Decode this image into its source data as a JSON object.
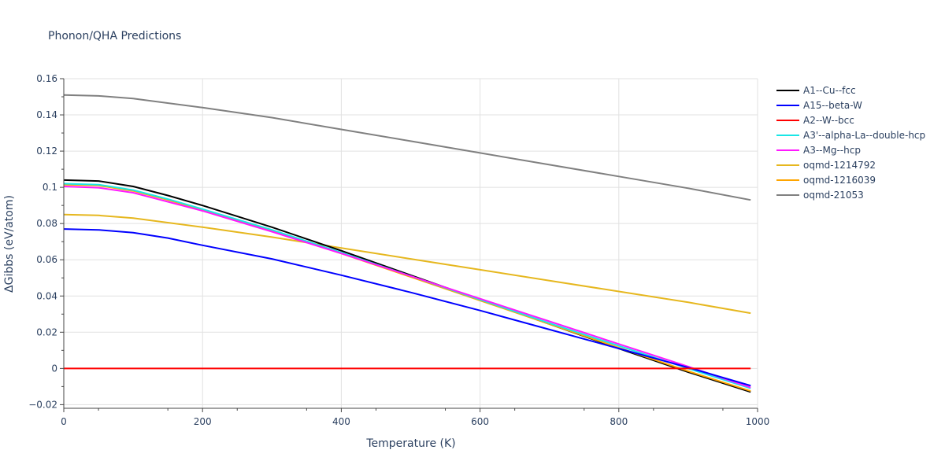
{
  "chart_data": {
    "type": "line",
    "title": "Phonon/QHA Predictions",
    "xlabel": "Temperature (K)",
    "ylabel": "ΔGibbs (eV/atom)",
    "xlim": [
      0,
      1000
    ],
    "ylim": [
      -0.022,
      0.16
    ],
    "xticks": [
      0,
      200,
      400,
      600,
      800,
      1000
    ],
    "xtick_labels": [
      "0",
      "200",
      "400",
      "600",
      "800",
      "1000"
    ],
    "yticks": [
      -0.02,
      0,
      0.02,
      0.04,
      0.06,
      0.08,
      0.1,
      0.12,
      0.14,
      0.16
    ],
    "ytick_labels": [
      "−0.02",
      "0",
      "0.02",
      "0.04",
      "0.06",
      "0.08",
      "0.1",
      "0.12",
      "0.14",
      "0.16"
    ],
    "grid": true,
    "legend_position": "right",
    "series": [
      {
        "name": "oqmd-21053",
        "color": "#808080",
        "x": [
          0,
          50,
          100,
          200,
          300,
          400,
          500,
          600,
          700,
          800,
          900,
          990
        ],
        "y": [
          0.151,
          0.1505,
          0.149,
          0.144,
          0.1385,
          0.132,
          0.1255,
          0.119,
          0.1125,
          0.106,
          0.0995,
          0.093
        ]
      },
      {
        "name": "oqmd-1214792",
        "color": "#e6b71e",
        "x": [
          0,
          50,
          100,
          200,
          300,
          400,
          500,
          600,
          700,
          800,
          900,
          990
        ],
        "y": [
          0.085,
          0.0845,
          0.083,
          0.078,
          0.0725,
          0.0665,
          0.0605,
          0.0545,
          0.0485,
          0.0425,
          0.0365,
          0.0305
        ]
      },
      {
        "name": "A1--Cu--fcc",
        "color": "#000000",
        "x": [
          0,
          50,
          100,
          150,
          200,
          300,
          400,
          500,
          600,
          700,
          800,
          900,
          990
        ],
        "y": [
          0.104,
          0.1035,
          0.1005,
          0.0955,
          0.09,
          0.078,
          0.065,
          0.0515,
          0.038,
          0.0245,
          0.011,
          -0.002,
          -0.013
        ]
      },
      {
        "name": "oqmd-1216039",
        "color": "#ffa500",
        "x": [
          0,
          50,
          100,
          150,
          200,
          300,
          400,
          500,
          600,
          700,
          800,
          900,
          990
        ],
        "y": [
          0.1015,
          0.101,
          0.098,
          0.093,
          0.0875,
          0.076,
          0.0635,
          0.0505,
          0.0375,
          0.0245,
          0.0115,
          -0.0015,
          -0.0125
        ]
      },
      {
        "name": "A3'--alpha-La--double-hcp",
        "color": "#19e6e6",
        "x": [
          0,
          50,
          100,
          150,
          200,
          300,
          400,
          500,
          600,
          700,
          800,
          900,
          990
        ],
        "y": [
          0.102,
          0.1015,
          0.0985,
          0.0935,
          0.088,
          0.0765,
          0.064,
          0.051,
          0.038,
          0.025,
          0.0125,
          0.0,
          -0.011
        ]
      },
      {
        "name": "A3--Mg--hcp",
        "color": "#ff19ff",
        "x": [
          0,
          50,
          100,
          150,
          200,
          300,
          400,
          500,
          600,
          700,
          800,
          900,
          990
        ],
        "y": [
          0.1005,
          0.0998,
          0.097,
          0.092,
          0.087,
          0.0755,
          0.0635,
          0.051,
          0.0385,
          0.026,
          0.0135,
          0.001,
          -0.0105
        ]
      },
      {
        "name": "A15--beta-W",
        "color": "#0000ff",
        "x": [
          0,
          50,
          100,
          150,
          200,
          300,
          400,
          500,
          600,
          700,
          800,
          900,
          990
        ],
        "y": [
          0.077,
          0.0765,
          0.075,
          0.072,
          0.068,
          0.0605,
          0.0515,
          0.042,
          0.032,
          0.0215,
          0.011,
          0.0005,
          -0.0095
        ]
      },
      {
        "name": "A2--W--bcc",
        "color": "#ff0000",
        "x": [
          0,
          990
        ],
        "y": [
          0,
          0
        ]
      }
    ],
    "legend_order": [
      "A1--Cu--fcc",
      "A15--beta-W",
      "A2--W--bcc",
      "A3'--alpha-La--double-hcp",
      "A3--Mg--hcp",
      "oqmd-1214792",
      "oqmd-1216039",
      "oqmd-21053"
    ]
  }
}
